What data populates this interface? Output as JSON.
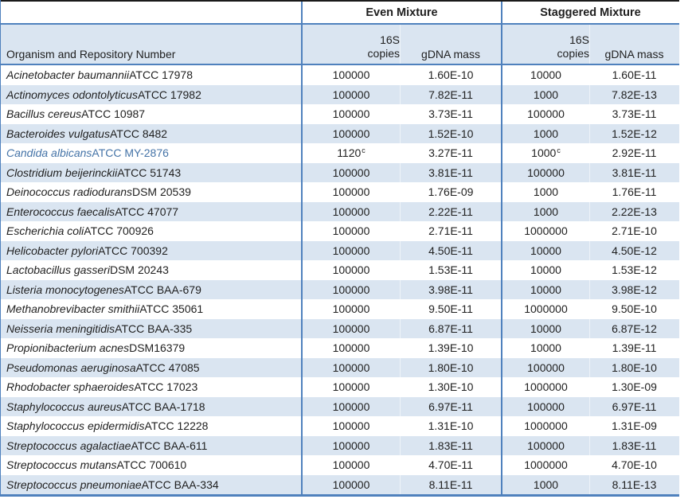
{
  "columns": {
    "group_even": "Even Mixture",
    "group_staggered": "Staggered Mixture",
    "organism_header": "Organism and Repository Number",
    "copies_header_line1": "16S",
    "copies_header_line2": "copies",
    "gdna_header": "gDNA mass"
  },
  "colors": {
    "stripe": "#DAE5F1",
    "border_blue": "#4F81BD",
    "top_border": "#1A1A1A",
    "highlight_text": "#4473A7",
    "text": "#1F1F1F"
  },
  "chart_data": {
    "type": "table",
    "column_groups": [
      "",
      "Even Mixture",
      "Staggered Mixture"
    ],
    "columns": [
      "Organism and Repository Number",
      "16S copies (Even)",
      "gDNA mass (Even)",
      "16S copies (Staggered)",
      "gDNA mass (Staggered)"
    ]
  },
  "rows": [
    {
      "species": "Acinetobacter baumannii",
      "repository": "ATCC 17978",
      "even_copies": "100000",
      "even_sup": "",
      "even_gdna": "1.60E-10",
      "stag_copies": "10000",
      "stag_sup": "",
      "stag_gdna": "1.60E-11",
      "highlight": false
    },
    {
      "species": "Actinomyces odontolyticus",
      "repository": "ATCC 17982",
      "even_copies": "100000",
      "even_sup": "",
      "even_gdna": "7.82E-11",
      "stag_copies": "1000",
      "stag_sup": "",
      "stag_gdna": "7.82E-13",
      "highlight": false
    },
    {
      "species": "Bacillus cereus",
      "repository": "ATCC 10987",
      "even_copies": "100000",
      "even_sup": "",
      "even_gdna": "3.73E-11",
      "stag_copies": "100000",
      "stag_sup": "",
      "stag_gdna": "3.73E-11",
      "highlight": false
    },
    {
      "species": "Bacteroides vulgatus",
      "repository": "ATCC 8482",
      "even_copies": "100000",
      "even_sup": "",
      "even_gdna": "1.52E-10",
      "stag_copies": "1000",
      "stag_sup": "",
      "stag_gdna": "1.52E-12",
      "highlight": false
    },
    {
      "species": "Candida albicans",
      "repository": "ATCC MY-2876",
      "even_copies": "1120",
      "even_sup": "c",
      "even_gdna": "3.27E-11",
      "stag_copies": "1000",
      "stag_sup": "c",
      "stag_gdna": "2.92E-11",
      "highlight": true
    },
    {
      "species": "Clostridium beijerinckii",
      "repository": "ATCC 51743",
      "even_copies": "100000",
      "even_sup": "",
      "even_gdna": "3.81E-11",
      "stag_copies": "100000",
      "stag_sup": "",
      "stag_gdna": "3.81E-11",
      "highlight": false
    },
    {
      "species": "Deinococcus radiodurans",
      "repository": "DSM 20539",
      "even_copies": "100000",
      "even_sup": "",
      "even_gdna": "1.76E-09",
      "stag_copies": "1000",
      "stag_sup": "",
      "stag_gdna": "1.76E-11",
      "highlight": false
    },
    {
      "species": "Enterococcus faecalis",
      "repository": "ATCC 47077",
      "even_copies": "100000",
      "even_sup": "",
      "even_gdna": "2.22E-11",
      "stag_copies": "1000",
      "stag_sup": "",
      "stag_gdna": "2.22E-13",
      "highlight": false
    },
    {
      "species": "Escherichia coli",
      "repository": "ATCC 700926",
      "even_copies": "100000",
      "even_sup": "",
      "even_gdna": "2.71E-11",
      "stag_copies": "1000000",
      "stag_sup": "",
      "stag_gdna": "2.71E-10",
      "highlight": false
    },
    {
      "species": "Helicobacter pylori",
      "repository": "ATCC 700392",
      "even_copies": "100000",
      "even_sup": "",
      "even_gdna": "4.50E-11",
      "stag_copies": "10000",
      "stag_sup": "",
      "stag_gdna": "4.50E-12",
      "highlight": false
    },
    {
      "species": "Lactobacillus gasseri",
      "repository": "DSM 20243",
      "even_copies": "100000",
      "even_sup": "",
      "even_gdna": "1.53E-11",
      "stag_copies": "10000",
      "stag_sup": "",
      "stag_gdna": "1.53E-12",
      "highlight": false
    },
    {
      "species": "Listeria monocytogenes",
      "repository": "ATCC BAA-679",
      "even_copies": "100000",
      "even_sup": "",
      "even_gdna": "3.98E-11",
      "stag_copies": "10000",
      "stag_sup": "",
      "stag_gdna": "3.98E-12",
      "highlight": false
    },
    {
      "species": "Methanobrevibacter smithii",
      "repository": "ATCC 35061",
      "even_copies": "100000",
      "even_sup": "",
      "even_gdna": "9.50E-11",
      "stag_copies": "1000000",
      "stag_sup": "",
      "stag_gdna": "9.50E-10",
      "highlight": false
    },
    {
      "species": "Neisseria meningitidis",
      "repository": "ATCC BAA-335",
      "even_copies": "100000",
      "even_sup": "",
      "even_gdna": "6.87E-11",
      "stag_copies": "10000",
      "stag_sup": "",
      "stag_gdna": "6.87E-12",
      "highlight": false
    },
    {
      "species": "Propionibacterium acnes",
      "repository": "DSM16379",
      "even_copies": "100000",
      "even_sup": "",
      "even_gdna": "1.39E-10",
      "stag_copies": "10000",
      "stag_sup": "",
      "stag_gdna": "1.39E-11",
      "highlight": false
    },
    {
      "species": "Pseudomonas aeruginosa",
      "repository": "ATCC 47085",
      "even_copies": "100000",
      "even_sup": "",
      "even_gdna": "1.80E-10",
      "stag_copies": "100000",
      "stag_sup": "",
      "stag_gdna": "1.80E-10",
      "highlight": false
    },
    {
      "species": "Rhodobacter sphaeroides",
      "repository": "ATCC 17023",
      "even_copies": "100000",
      "even_sup": "",
      "even_gdna": "1.30E-10",
      "stag_copies": "1000000",
      "stag_sup": "",
      "stag_gdna": "1.30E-09",
      "highlight": false
    },
    {
      "species": "Staphylococcus aureus",
      "repository": "ATCC BAA-1718",
      "even_copies": "100000",
      "even_sup": "",
      "even_gdna": "6.97E-11",
      "stag_copies": "100000",
      "stag_sup": "",
      "stag_gdna": "6.97E-11",
      "highlight": false
    },
    {
      "species": "Staphylococcus epidermidis",
      "repository": "ATCC 12228",
      "even_copies": "100000",
      "even_sup": "",
      "even_gdna": "1.31E-10",
      "stag_copies": "1000000",
      "stag_sup": "",
      "stag_gdna": "1.31E-09",
      "highlight": false
    },
    {
      "species": "Streptococcus agalactiae",
      "repository": "ATCC BAA-611",
      "even_copies": "100000",
      "even_sup": "",
      "even_gdna": "1.83E-11",
      "stag_copies": "100000",
      "stag_sup": "",
      "stag_gdna": "1.83E-11",
      "highlight": false
    },
    {
      "species": "Streptococcus mutans",
      "repository": "ATCC 700610",
      "even_copies": "100000",
      "even_sup": "",
      "even_gdna": "4.70E-11",
      "stag_copies": "1000000",
      "stag_sup": "",
      "stag_gdna": "4.70E-10",
      "highlight": false
    },
    {
      "species": "Streptococcus pneumoniae",
      "repository": "ATCC BAA-334",
      "even_copies": "100000",
      "even_sup": "",
      "even_gdna": "8.11E-11",
      "stag_copies": "1000",
      "stag_sup": "",
      "stag_gdna": "8.11E-13",
      "highlight": false
    }
  ]
}
